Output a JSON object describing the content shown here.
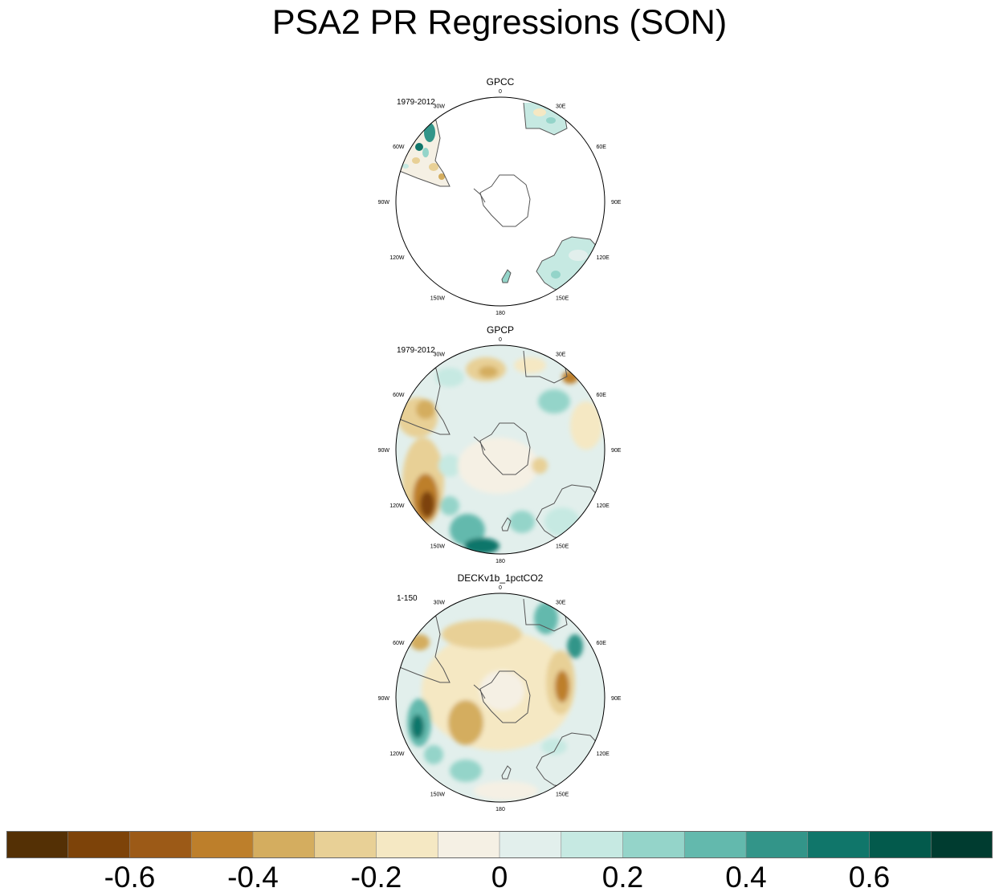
{
  "title": "PSA2 PR Regressions (SON)",
  "chart_data": {
    "type": "heatmap",
    "title": "PSA2 PR Regressions (SON)",
    "projection": "south polar stereographic",
    "longitude_labels": [
      "0",
      "30E",
      "60E",
      "90E",
      "120E",
      "150E",
      "180",
      "150W",
      "120W",
      "90W",
      "60W",
      "30W"
    ],
    "panels": [
      {
        "name": "GPCC",
        "period": "1979-2012"
      },
      {
        "name": "GPCP",
        "period": "1979-2012"
      },
      {
        "name": "DECKv1b_1pctCO2",
        "period": "1-150"
      }
    ],
    "colorbar": {
      "boundaries": [
        -0.7,
        -0.6,
        -0.5,
        -0.4,
        -0.3,
        -0.2,
        -0.1,
        0,
        0.1,
        0.2,
        0.3,
        0.4,
        0.5,
        0.6,
        0.7
      ],
      "colors": [
        "#543005",
        "#7d4309",
        "#9c5a17",
        "#bd7f2b",
        "#d4ad5f",
        "#e8d096",
        "#f5e8c3",
        "#f5f0e4",
        "#e2efec",
        "#c6e9e2",
        "#94d4c9",
        "#63b9ad",
        "#339589",
        "#10766a",
        "#035a4c",
        "#003c30"
      ],
      "tick_labels": [
        "-0.6",
        "-0.4",
        "-0.2",
        "0",
        "0.2",
        "0.4",
        "0.6"
      ],
      "tick_values": [
        -0.6,
        -0.4,
        -0.2,
        0,
        0.2,
        0.4,
        0.6
      ]
    }
  }
}
